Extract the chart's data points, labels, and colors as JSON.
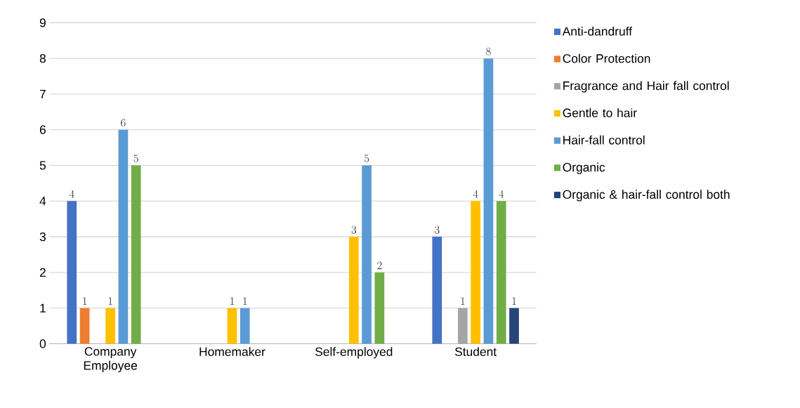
{
  "chart_data": {
    "type": "bar",
    "categories": [
      "Company Employee",
      "Homemaker",
      "Self-employed",
      "Student"
    ],
    "series": [
      {
        "name": "Anti-dandruff",
        "color": "#4472c4",
        "values": [
          4,
          null,
          null,
          3
        ]
      },
      {
        "name": "Color Protection",
        "color": "#ed7d31",
        "values": [
          1,
          null,
          null,
          null
        ]
      },
      {
        "name": "Fragrance and Hair fall control",
        "color": "#a5a5a5",
        "values": [
          null,
          null,
          null,
          1
        ]
      },
      {
        "name": "Gentle to hair",
        "color": "#ffc000",
        "values": [
          1,
          1,
          3,
          4
        ]
      },
      {
        "name": "Hair-fall control",
        "color": "#5b9bd5",
        "values": [
          6,
          1,
          5,
          8
        ]
      },
      {
        "name": "Organic",
        "color": "#70ad47",
        "values": [
          5,
          null,
          2,
          4
        ]
      },
      {
        "name": "Organic & hair-fall control both",
        "color": "#264478",
        "values": [
          null,
          null,
          null,
          1
        ]
      }
    ],
    "ylim": [
      0,
      9
    ],
    "yticks": [
      0,
      1,
      2,
      3,
      4,
      5,
      6,
      7,
      8,
      9
    ],
    "grid": "y",
    "legend": "right",
    "data_labels": true
  }
}
